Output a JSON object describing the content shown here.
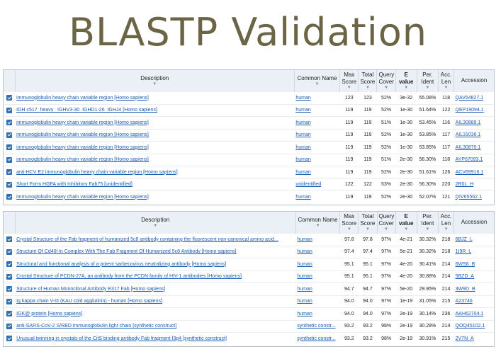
{
  "title": "BLASTP Validation",
  "headers": {
    "description": "Description",
    "common_name": "Common Name",
    "max_score": "Max Score",
    "total_score": "Total Score",
    "query_cover": "Query Cover",
    "e_value": "E value",
    "per_ident": "Per. Ident",
    "acc_len": "Acc. Len",
    "accession": "Accession"
  },
  "colors": {
    "link": "#1a5cb0",
    "header_bg": "#eaf0f5",
    "title": "#6b6445",
    "checkbox": "#2f6fb5"
  },
  "table1": [
    {
      "desc": "immunoglobulin heavy chain variable region [Homo sapiens]",
      "cn": "human",
      "max": "123",
      "total": "123",
      "cover": "52%",
      "e": "3e-32",
      "ident": "55.08%",
      "len": "118",
      "acc": "QAV54827.1"
    },
    {
      "desc": "IGH c517_heavy_ IGHV3-30_IGHD1-26_IGHJ4 [Homo sapiens]",
      "cn": "human",
      "max": "119",
      "total": "119",
      "cover": "52%",
      "e": "1e-30",
      "ident": "51.64%",
      "len": "122",
      "acc": "QEP19094.1"
    },
    {
      "desc": "immunoglobulin heavy chain variable region [Homo sapiens]",
      "cn": "human",
      "max": "119",
      "total": "119",
      "cover": "51%",
      "e": "1e-30",
      "ident": "53.45%",
      "len": "116",
      "acc": "AIL30889.1"
    },
    {
      "desc": "immunoglobulin heavy chain variable region [Homo sapiens]",
      "cn": "human",
      "max": "119",
      "total": "119",
      "cover": "52%",
      "e": "1e-30",
      "ident": "53.85%",
      "len": "117",
      "acc": "AIL31036.1"
    },
    {
      "desc": "immunoglobulin heavy chain variable region [Homo sapiens]",
      "cn": "human",
      "max": "119",
      "total": "119",
      "cover": "52%",
      "e": "1e-30",
      "ident": "53.85%",
      "len": "117",
      "acc": "AIL30870.1"
    },
    {
      "desc": "immunoglobulin heavy chain variable region [Homo sapiens]",
      "cn": "human",
      "max": "119",
      "total": "119",
      "cover": "51%",
      "e": "2e-30",
      "ident": "56.30%",
      "len": "118",
      "acc": "AYP67093.1"
    },
    {
      "desc": "anti-HCV E2 immunoglobulin heavy chain variable region [Homo sapiens]",
      "cn": "human",
      "max": "119",
      "total": "119",
      "cover": "52%",
      "e": "2e-30",
      "ident": "51.61%",
      "len": "126",
      "acc": "ACV69916.1"
    },
    {
      "desc": "Short Form HGFA with Inhibitory Fab75 [unidentified]",
      "cn": "unidentified",
      "max": "122",
      "total": "122",
      "cover": "53%",
      "e": "2e-30",
      "ident": "56.30%",
      "len": "220",
      "acc": "2R0L_H"
    },
    {
      "desc": "immunoglobulin heavy chain variable region [Homo sapiens]",
      "cn": "human",
      "max": "119",
      "total": "119",
      "cover": "52%",
      "e": "2e-30",
      "ident": "52.07%",
      "len": "121",
      "acc": "QIV65562.1"
    }
  ],
  "table2": [
    {
      "desc": "Crystal Structure of the Fab fragment of humanized 5c8 antibody containing the fluorescent non-canonical amino acid...",
      "cn": "human",
      "max": "97.8",
      "total": "97.8",
      "cover": "97%",
      "e": "4e-21",
      "ident": "30.32%",
      "len": "218",
      "acc": "6BJZ_L"
    },
    {
      "desc": "Structure Of Cd40l In Complex With The Fab Fragment Of Humanized 5c8 Antibody [Homo sapiens]",
      "cn": "human",
      "max": "97.4",
      "total": "97.4",
      "cover": "97%",
      "e": "5e-21",
      "ident": "30.32%",
      "len": "218",
      "acc": "1I9R_L"
    },
    {
      "desc": "Structural and functional analysis of a potent sarbecovirus neutralizing antibody [Homo sapiens]",
      "cn": "human",
      "max": "95.1",
      "total": "95.1",
      "cover": "97%",
      "e": "4e-20",
      "ident": "30.41%",
      "len": "214",
      "acc": "6WS6_B"
    },
    {
      "desc": "Crystal Structure of PCDN-27A, an antibody from the PCDN family of HIV-1 antibodies [Homo sapiens]",
      "cn": "human",
      "max": "95.1",
      "total": "95.1",
      "cover": "97%",
      "e": "4e-20",
      "ident": "30.88%",
      "len": "214",
      "acc": "5BZD_A"
    },
    {
      "desc": "Structure of Human Monoclonal Antibody E317 Fab [Homo sapiens]",
      "cn": "human",
      "max": "94.7",
      "total": "94.7",
      "cover": "97%",
      "e": "5e-20",
      "ident": "29.95%",
      "len": "214",
      "acc": "3W9D_B"
    },
    {
      "desc": "Ig kappa chain V-III (KAU cold agglutinin) - human [Homo sapiens]",
      "cn": "human",
      "max": "94.0",
      "total": "94.0",
      "cover": "97%",
      "e": "1e-19",
      "ident": "31.05%",
      "len": "215",
      "acc": "A23746"
    },
    {
      "desc": "IGK@ protein [Homo sapiens]",
      "cn": "human",
      "max": "94.0",
      "total": "94.0",
      "cover": "97%",
      "e": "2e-19",
      "ident": "30.14%",
      "len": "236",
      "acc": "AAH62704.1"
    },
    {
      "desc": "anti-SARS-CoV-2 S/RBD immunoglobulin light chain [synthetic construct]",
      "cn": "synthetic constr...",
      "max": "93.2",
      "total": "93.2",
      "cover": "98%",
      "e": "2e-19",
      "ident": "30.28%",
      "len": "214",
      "acc": "QOQ45102.1"
    },
    {
      "desc": "Unusual twinning in crystals of the CitS binding antibody Fab fragment f3p4 [synthetic construct]",
      "cn": "synthetic constr...",
      "max": "93.2",
      "total": "93.2",
      "cover": "98%",
      "e": "2e-19",
      "ident": "30.91%",
      "len": "215",
      "acc": "2V7N_A"
    }
  ]
}
